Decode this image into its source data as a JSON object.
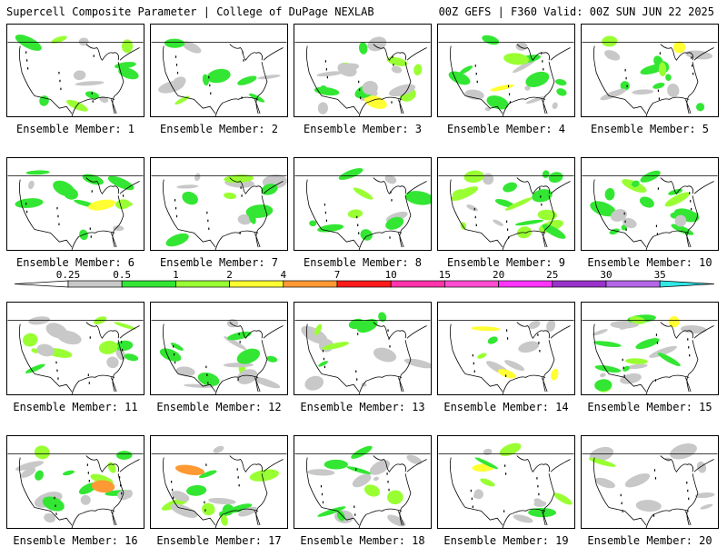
{
  "header": {
    "left_title": "Supercell Composite Parameter | College of DuPage NEXLAB",
    "right_title": "00Z GEFS | F360 Valid: 00Z SUN JUN 22 2025"
  },
  "colorbar": {
    "labels": [
      "0.25",
      "0.5",
      "1",
      "2",
      "4",
      "7",
      "10",
      "15",
      "20",
      "25",
      "30",
      "35"
    ],
    "colors": [
      "#c8c8c8",
      "#33e633",
      "#99ff33",
      "#ffff33",
      "#ff9933",
      "#ff1a1a",
      "#ff33aa",
      "#ff4dd2",
      "#ff33ff",
      "#9933cc",
      "#b366e6",
      "#33e6e6"
    ]
  },
  "panels": [
    {
      "label": "Ensemble Member: 1"
    },
    {
      "label": "Ensemble Member: 2"
    },
    {
      "label": "Ensemble Member: 3"
    },
    {
      "label": "Ensemble Member: 4"
    },
    {
      "label": "Ensemble Member: 5"
    },
    {
      "label": "Ensemble Member: 6"
    },
    {
      "label": "Ensemble Member: 7"
    },
    {
      "label": "Ensemble Member: 8"
    },
    {
      "label": "Ensemble Member: 9"
    },
    {
      "label": "Ensemble Member: 10"
    },
    {
      "label": "Ensemble Member: 11"
    },
    {
      "label": "Ensemble Member: 12"
    },
    {
      "label": "Ensemble Member: 13"
    },
    {
      "label": "Ensemble Member: 14"
    },
    {
      "label": "Ensemble Member: 15"
    },
    {
      "label": "Ensemble Member: 16"
    },
    {
      "label": "Ensemble Member: 17"
    },
    {
      "label": "Ensemble Member: 18"
    },
    {
      "label": "Ensemble Member: 19"
    },
    {
      "label": "Ensemble Member: 20"
    }
  ]
}
